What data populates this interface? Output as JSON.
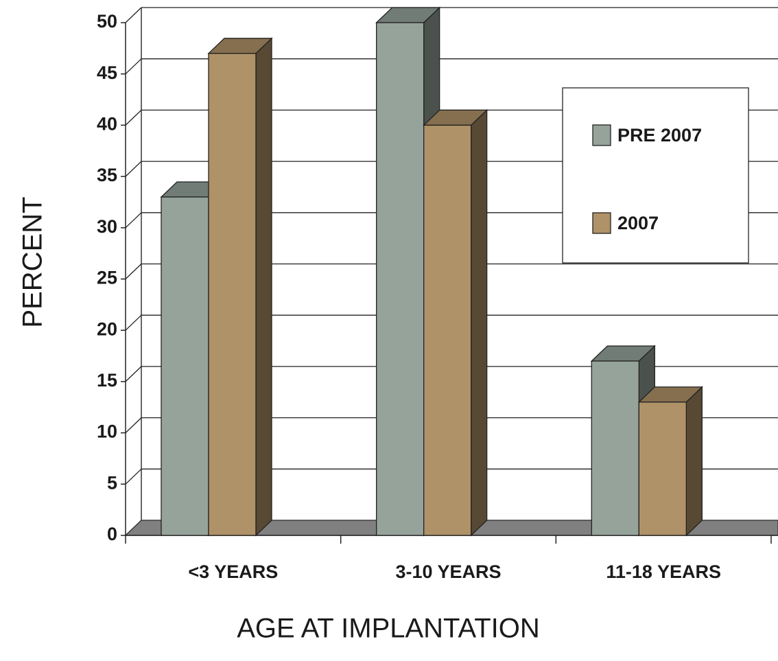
{
  "chart_data": {
    "type": "bar3d",
    "x_label": "AGE AT IMPLANTATION",
    "y_label": "PERCENT",
    "categories": [
      "<3 YEARS",
      "3-10 YEARS",
      "11-18 YEARS"
    ],
    "series": [
      {
        "name": "PRE 2007",
        "color": "#95a39b",
        "values": [
          33,
          50,
          17
        ]
      },
      {
        "name": "2007",
        "color": "#b09268",
        "values": [
          47,
          40,
          13
        ]
      }
    ],
    "ylim": [
      0,
      50
    ],
    "yticks": [
      0,
      5,
      10,
      15,
      20,
      25,
      30,
      35,
      40,
      45,
      50
    ],
    "grid": true,
    "legend": "upper right"
  }
}
